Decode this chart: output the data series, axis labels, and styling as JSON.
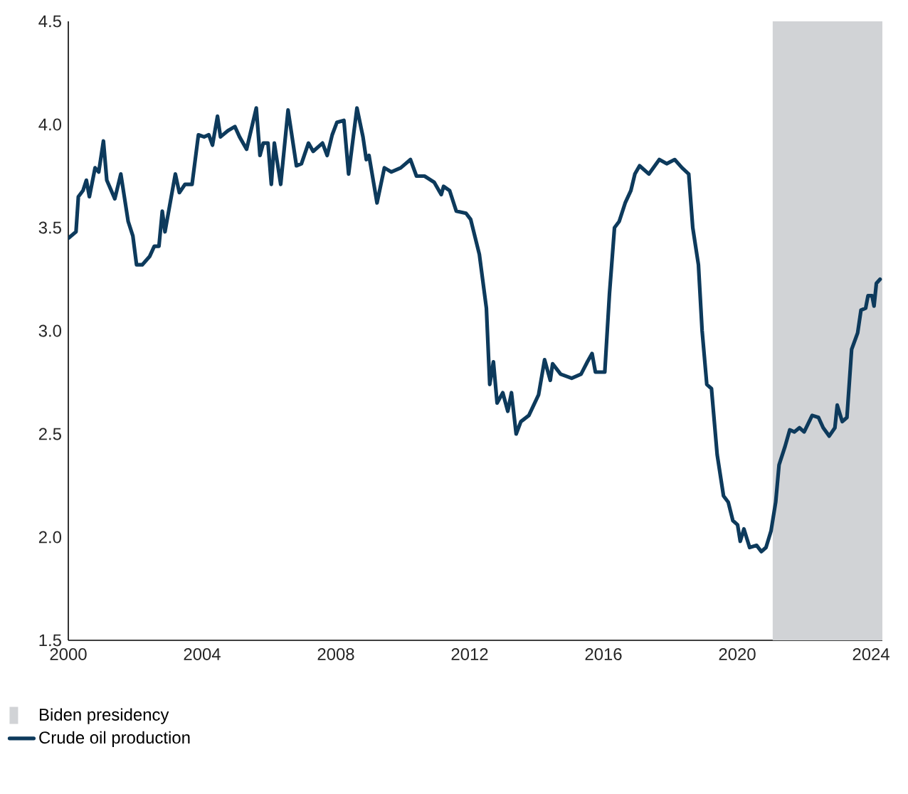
{
  "chart_data": {
    "type": "line",
    "xlim": [
      2000,
      2024.34
    ],
    "ylim": [
      1.5,
      4.5
    ],
    "xticks": [
      2000,
      2004,
      2008,
      2012,
      2016,
      2020,
      2024
    ],
    "yticks": [
      1.5,
      {
        "value": 2,
        "label": "2.0"
      },
      2.5,
      {
        "value": 3,
        "label": "3.0"
      },
      3.5,
      {
        "value": 4,
        "label": "4.0"
      },
      4.5
    ],
    "legend": "bottom left",
    "grid": false,
    "bands": [
      {
        "axis": "x",
        "from": 2021.06,
        "to": 2024.34,
        "label": "Biden presidency",
        "color": "#d1d3d6"
      }
    ],
    "series": [
      {
        "name": "Crude oil production",
        "color": "#0d3a5c",
        "x": [
          2000.01,
          2000.23,
          2000.3,
          2000.44,
          2000.54,
          2000.63,
          2000.8,
          2000.91,
          2001.05,
          2001.15,
          2001.39,
          2001.57,
          2001.79,
          2001.93,
          2002.04,
          2002.21,
          2002.43,
          2002.57,
          2002.71,
          2002.81,
          2002.89,
          2003.2,
          2003.32,
          2003.49,
          2003.7,
          2003.89,
          2004.06,
          2004.2,
          2004.31,
          2004.46,
          2004.55,
          2004.77,
          2004.98,
          2005.12,
          2005.33,
          2005.62,
          2005.73,
          2005.83,
          2005.97,
          2006.07,
          2006.16,
          2006.35,
          2006.57,
          2006.82,
          2006.97,
          2007.18,
          2007.32,
          2007.6,
          2007.74,
          2007.89,
          2008.03,
          2008.24,
          2008.38,
          2008.63,
          2008.81,
          2008.91,
          2008.99,
          2009.23,
          2009.45,
          2009.66,
          2009.94,
          2010.23,
          2010.41,
          2010.65,
          2010.94,
          2011.15,
          2011.22,
          2011.4,
          2011.6,
          2011.89,
          2012.03,
          2012.29,
          2012.5,
          2012.6,
          2012.71,
          2012.82,
          2012.99,
          2013.14,
          2013.25,
          2013.39,
          2013.53,
          2013.77,
          2014.06,
          2014.24,
          2014.41,
          2014.48,
          2014.72,
          2015.05,
          2015.33,
          2015.52,
          2015.66,
          2015.76,
          2016.04,
          2016.18,
          2016.33,
          2016.47,
          2016.65,
          2016.82,
          2016.94,
          2017.08,
          2017.36,
          2017.67,
          2017.89,
          2018.13,
          2018.35,
          2018.55,
          2018.67,
          2018.84,
          2018.95,
          2019.09,
          2019.23,
          2019.4,
          2019.59,
          2019.73,
          2019.87,
          2020.01,
          2020.09,
          2020.2,
          2020.37,
          2020.58,
          2020.72,
          2020.86,
          2021.01,
          2021.15,
          2021.25,
          2021.43,
          2021.57,
          2021.71,
          2021.86,
          2022.0,
          2022.24,
          2022.43,
          2022.57,
          2022.75,
          2022.92,
          2022.99,
          2023.14,
          2023.28,
          2023.42,
          2023.6,
          2023.7,
          2023.84,
          2023.91,
          2024.03,
          2024.09,
          2024.16,
          2024.27
        ],
        "values": [
          3.45,
          3.48,
          3.65,
          3.68,
          3.73,
          3.65,
          3.79,
          3.77,
          3.92,
          3.73,
          3.64,
          3.76,
          3.53,
          3.46,
          3.32,
          3.32,
          3.36,
          3.41,
          3.41,
          3.58,
          3.48,
          3.76,
          3.67,
          3.71,
          3.71,
          3.95,
          3.94,
          3.95,
          3.9,
          4.04,
          3.94,
          3.97,
          3.99,
          3.94,
          3.88,
          4.08,
          3.85,
          3.91,
          3.91,
          3.71,
          3.91,
          3.71,
          4.07,
          3.8,
          3.81,
          3.91,
          3.87,
          3.91,
          3.85,
          3.95,
          4.01,
          4.02,
          3.76,
          4.08,
          3.94,
          3.83,
          3.85,
          3.62,
          3.79,
          3.77,
          3.79,
          3.83,
          3.75,
          3.75,
          3.72,
          3.66,
          3.7,
          3.68,
          3.58,
          3.57,
          3.54,
          3.37,
          3.11,
          2.74,
          2.85,
          2.65,
          2.7,
          2.61,
          2.7,
          2.5,
          2.56,
          2.59,
          2.69,
          2.86,
          2.76,
          2.84,
          2.79,
          2.77,
          2.79,
          2.85,
          2.89,
          2.8,
          2.8,
          3.18,
          3.5,
          3.53,
          3.62,
          3.68,
          3.76,
          3.8,
          3.76,
          3.83,
          3.81,
          3.83,
          3.79,
          3.76,
          3.5,
          3.32,
          3.0,
          2.74,
          2.72,
          2.4,
          2.2,
          2.17,
          2.08,
          2.06,
          1.98,
          2.04,
          1.95,
          1.96,
          1.93,
          1.95,
          2.03,
          2.17,
          2.35,
          2.44,
          2.52,
          2.51,
          2.53,
          2.51,
          2.59,
          2.58,
          2.53,
          2.49,
          2.53,
          2.64,
          2.56,
          2.58,
          2.91,
          2.99,
          3.1,
          3.11,
          3.17,
          3.17,
          3.12,
          3.23,
          3.25
        ]
      }
    ]
  }
}
